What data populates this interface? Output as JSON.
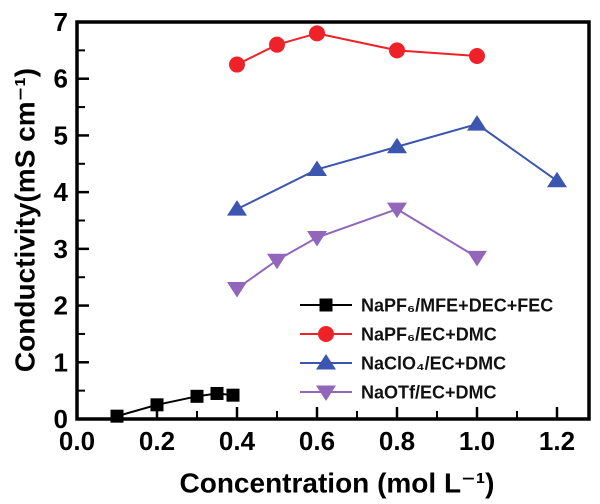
{
  "chart_data": {
    "type": "line",
    "title": "",
    "xlabel": "Concentration (mol L⁻¹)",
    "ylabel": "Conductivity(mS cm⁻¹)",
    "xlim": [
      0.0,
      1.28
    ],
    "ylim": [
      0,
      7
    ],
    "x_major_ticks": [
      0.0,
      0.2,
      0.4,
      0.6,
      0.8,
      1.0,
      1.2
    ],
    "x_tick_labels": [
      "0.0",
      "0.2",
      "0.4",
      "0.6",
      "0.8",
      "1.0",
      "1.2"
    ],
    "x_minor_step": 0.1,
    "y_major_ticks": [
      0,
      1,
      2,
      3,
      4,
      5,
      6,
      7
    ],
    "y_tick_labels": [
      "0",
      "1",
      "2",
      "3",
      "4",
      "5",
      "6",
      "7"
    ],
    "y_minor_step": 0.5,
    "grid": false,
    "legend_position": "inside-bottom-right",
    "frame_color": "#000000",
    "series": [
      {
        "name": "NaPF₆/MFE+DEC+FEC",
        "color": "#000000",
        "marker": "square",
        "x": [
          0.1,
          0.2,
          0.3,
          0.35,
          0.39
        ],
        "y": [
          0.05,
          0.25,
          0.4,
          0.45,
          0.42
        ]
      },
      {
        "name": "NaPF₆/EC+DMC",
        "color": "#ee2228",
        "marker": "circle",
        "x": [
          0.4,
          0.5,
          0.6,
          0.8,
          1.0
        ],
        "y": [
          6.25,
          6.6,
          6.8,
          6.5,
          6.4
        ]
      },
      {
        "name": "NaClO₄/EC+DMC",
        "color": "#3c56b0",
        "marker": "triangle-up",
        "x": [
          0.4,
          0.6,
          0.8,
          1.0,
          1.2
        ],
        "y": [
          3.7,
          4.4,
          4.8,
          5.2,
          4.2
        ]
      },
      {
        "name": "NaOTf/EC+DMC",
        "color": "#9266bb",
        "marker": "triangle-down",
        "x": [
          0.4,
          0.5,
          0.6,
          0.8,
          1.0
        ],
        "y": [
          2.3,
          2.8,
          3.2,
          3.7,
          2.85
        ]
      }
    ]
  }
}
